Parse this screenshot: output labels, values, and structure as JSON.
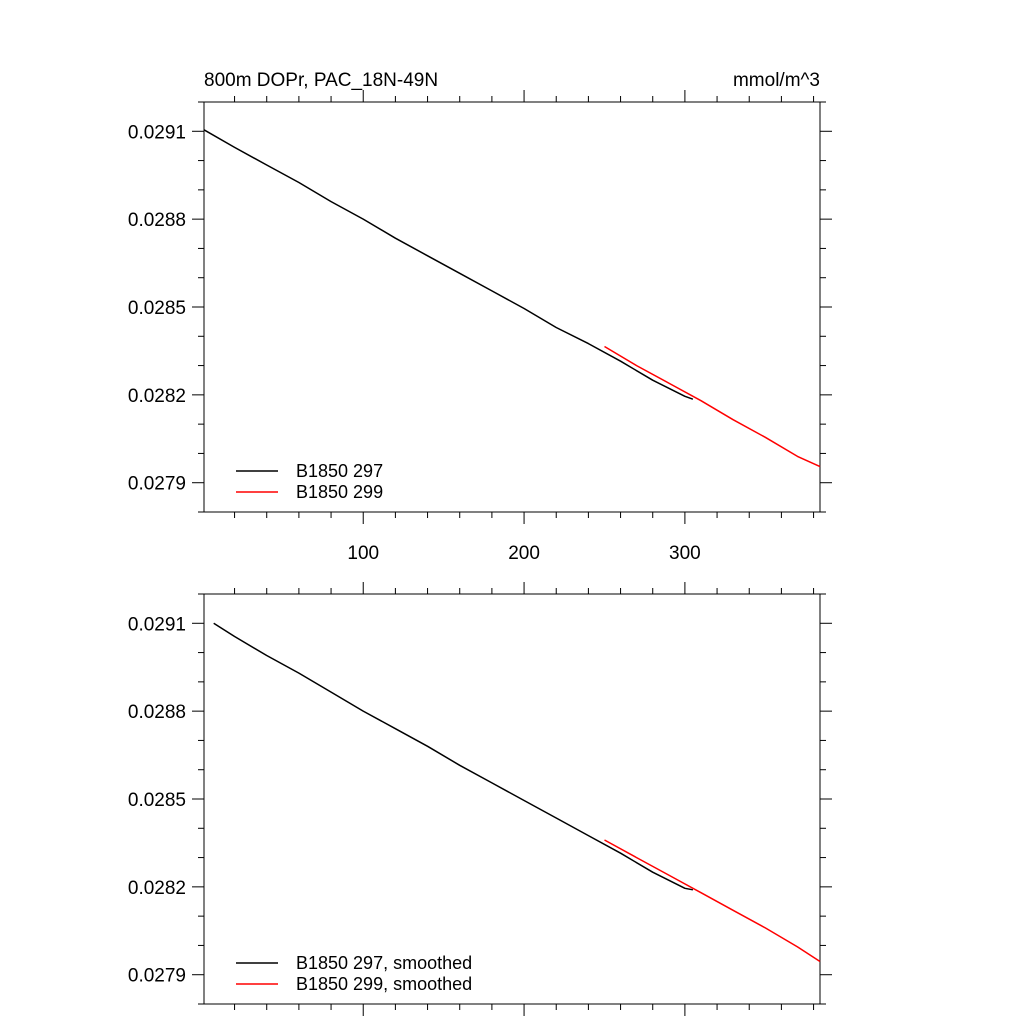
{
  "header": {
    "left_title": "800m DOPr, PAC_18N-49N",
    "units": "mmol/m^3"
  },
  "colors": {
    "series_297": "#000000",
    "series_299": "#ff0000",
    "axis": "#000000"
  },
  "chart_data": [
    {
      "type": "line",
      "title": "800m DOPr, PAC_18N-49N",
      "units_label": "mmol/m^3",
      "xlabel": "",
      "ylabel": "",
      "xlim": [
        1,
        384
      ],
      "ylim": [
        0.0278,
        0.0292
      ],
      "x_ticks": [
        100,
        200,
        300
      ],
      "x_tick_labels": [
        "100",
        "200",
        "300"
      ],
      "y_ticks": [
        0.0279,
        0.0282,
        0.0285,
        0.0288,
        0.0291
      ],
      "y_tick_labels": [
        "0.0279",
        "0.0282",
        "0.0285",
        "0.0288",
        "0.0291"
      ],
      "grid": false,
      "legend_position": "bottom-left",
      "series": [
        {
          "name": "B1850 297",
          "color": "#000000",
          "points": [
            [
              1,
              0.029105
            ],
            [
              20,
              0.029045
            ],
            [
              40,
              0.028985
            ],
            [
              60,
              0.028925
            ],
            [
              80,
              0.02886
            ],
            [
              100,
              0.0288
            ],
            [
              120,
              0.028735
            ],
            [
              140,
              0.028675
            ],
            [
              160,
              0.028615
            ],
            [
              180,
              0.028555
            ],
            [
              200,
              0.028495
            ],
            [
              220,
              0.02843
            ],
            [
              240,
              0.028375
            ],
            [
              260,
              0.028315
            ],
            [
              280,
              0.02825
            ],
            [
              300,
              0.028195
            ],
            [
              305,
              0.028185
            ]
          ]
        },
        {
          "name": "B1850 299",
          "color": "#ff0000",
          "points": [
            [
              250,
              0.028365
            ],
            [
              270,
              0.0283
            ],
            [
              290,
              0.02824
            ],
            [
              310,
              0.02818
            ],
            [
              330,
              0.028115
            ],
            [
              350,
              0.028055
            ],
            [
              370,
              0.02799
            ],
            [
              384,
              0.027955
            ]
          ]
        }
      ]
    },
    {
      "type": "line",
      "title": "",
      "xlabel": "",
      "ylabel": "",
      "xlim": [
        1,
        384
      ],
      "ylim": [
        0.0278,
        0.0292
      ],
      "x_ticks": [
        100,
        200,
        300
      ],
      "x_tick_labels": [],
      "y_ticks": [
        0.0279,
        0.0282,
        0.0285,
        0.0288,
        0.0291
      ],
      "y_tick_labels": [
        "0.0279",
        "0.0282",
        "0.0285",
        "0.0288",
        "0.0291"
      ],
      "grid": false,
      "legend_position": "bottom-left",
      "series": [
        {
          "name": "B1850 297, smoothed",
          "color": "#000000",
          "points": [
            [
              7,
              0.0291
            ],
            [
              20,
              0.029055
            ],
            [
              40,
              0.02899
            ],
            [
              60,
              0.02893
            ],
            [
              80,
              0.028865
            ],
            [
              100,
              0.0288
            ],
            [
              120,
              0.02874
            ],
            [
              140,
              0.02868
            ],
            [
              160,
              0.028615
            ],
            [
              180,
              0.028555
            ],
            [
              200,
              0.028495
            ],
            [
              220,
              0.028435
            ],
            [
              240,
              0.028375
            ],
            [
              260,
              0.028315
            ],
            [
              280,
              0.02825
            ],
            [
              300,
              0.028195
            ],
            [
              305,
              0.02819
            ]
          ]
        },
        {
          "name": "B1850 299, smoothed",
          "color": "#ff0000",
          "points": [
            [
              250,
              0.02836
            ],
            [
              270,
              0.0283
            ],
            [
              290,
              0.02824
            ],
            [
              310,
              0.02818
            ],
            [
              330,
              0.02812
            ],
            [
              350,
              0.02806
            ],
            [
              370,
              0.027995
            ],
            [
              384,
              0.027945
            ]
          ]
        }
      ]
    }
  ]
}
